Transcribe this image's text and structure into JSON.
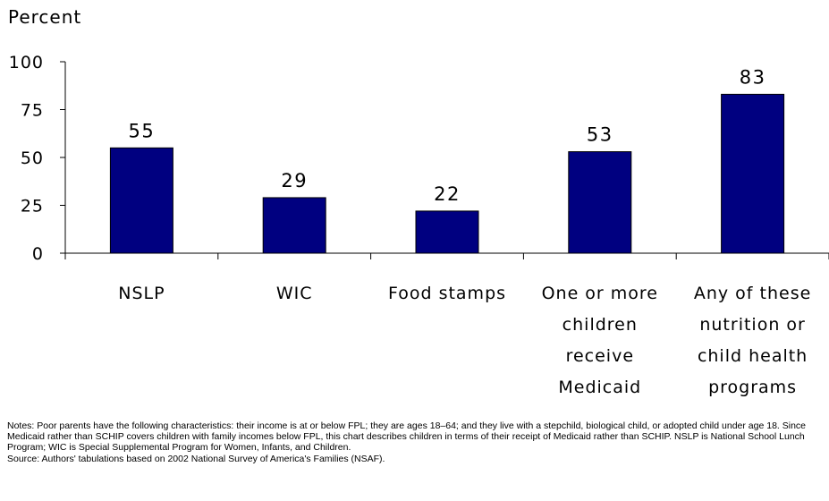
{
  "chart_data": {
    "type": "bar",
    "title": "",
    "ylabel": "Percent",
    "xlabel": "",
    "ylim": [
      0,
      100
    ],
    "yticks": [
      0,
      25,
      50,
      75,
      100
    ],
    "categories": [
      "NSLP",
      "WIC",
      "Food stamps",
      "One or more children receive Medicaid",
      "Any of these nutrition or child health programs"
    ],
    "category_lines": [
      [
        "NSLP"
      ],
      [
        "WIC"
      ],
      [
        "Food stamps"
      ],
      [
        "One or more",
        "children",
        "receive",
        "Medicaid"
      ],
      [
        "Any of these",
        "nutrition or",
        "child health",
        "programs"
      ]
    ],
    "values": [
      55,
      29,
      22,
      53,
      83
    ],
    "data_labels": [
      "55",
      "29",
      "22",
      "53",
      "83"
    ],
    "bar_color": "#000080",
    "grid": false,
    "legend": "none"
  },
  "footnotes": {
    "notes": "Notes: Poor parents have the following characteristics: their income is at or below FPL; they are ages 18–64; and they live with a stepchild, biological child, or adopted child under age 18. Since Medicaid rather than SCHIP covers children with family incomes below FPL, this chart describes children in terms of their receipt of Medicaid rather than SCHIP. NSLP is National School Lunch Program; WIC is Special Supplemental Program for Women, Infants, and Children.",
    "source": "Source: Authors' tabulations based on 2002 National Survey of America's Families (NSAF)."
  }
}
